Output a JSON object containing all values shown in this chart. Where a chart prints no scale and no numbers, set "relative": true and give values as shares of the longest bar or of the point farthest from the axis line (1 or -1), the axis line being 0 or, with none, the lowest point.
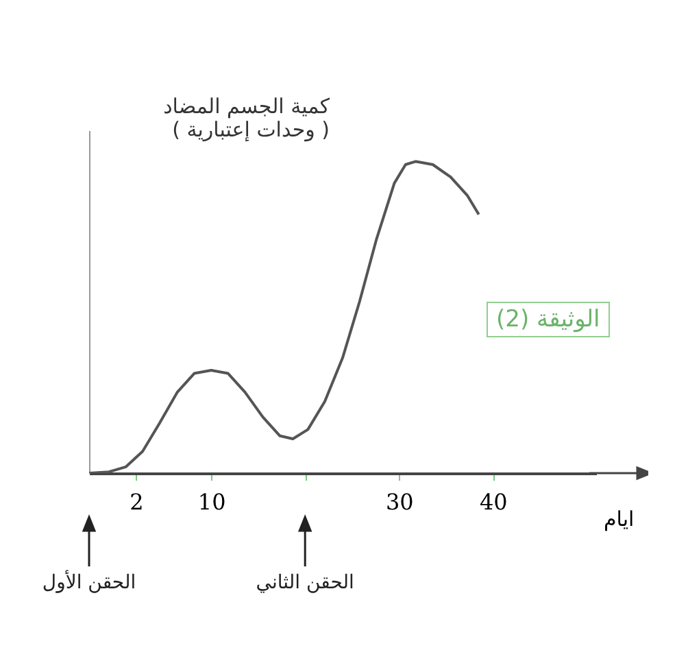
{
  "chart_data": {
    "type": "line",
    "relative": true,
    "xlabel": "ايام",
    "ylabel": "كمية الجسم المضاد\n( وحدات إعتبارية )",
    "xlim": [
      -3,
      51
    ],
    "xticks": [
      2,
      10,
      {
        "value": 20,
        "label": null
      },
      30,
      40
    ],
    "series": [
      {
        "color": "#555555",
        "x": [
          -3,
          -0.9,
          0.9,
          2.7,
          4.5,
          6.4,
          8.2,
          10,
          11.8,
          13.6,
          15.5,
          17.3,
          18.7,
          20.3,
          22.1,
          24,
          25.8,
          27.6,
          29.5,
          30.7,
          31.8,
          33.6,
          35.5,
          37.3,
          38.5
        ],
        "values": [
          0,
          0.004,
          0.02,
          0.07,
          0.16,
          0.26,
          0.32,
          0.33,
          0.32,
          0.26,
          0.18,
          0.12,
          0.11,
          0.14,
          0.23,
          0.37,
          0.55,
          0.75,
          0.93,
          0.99,
          1,
          0.99,
          0.95,
          0.89,
          0.83
        ]
      }
    ],
    "annotations": [
      "الوثيقة (2)",
      "الحقن الثاني",
      "الحقن الأول"
    ],
    "grid": false,
    "marker": "none",
    "line_style": "solid"
  }
}
